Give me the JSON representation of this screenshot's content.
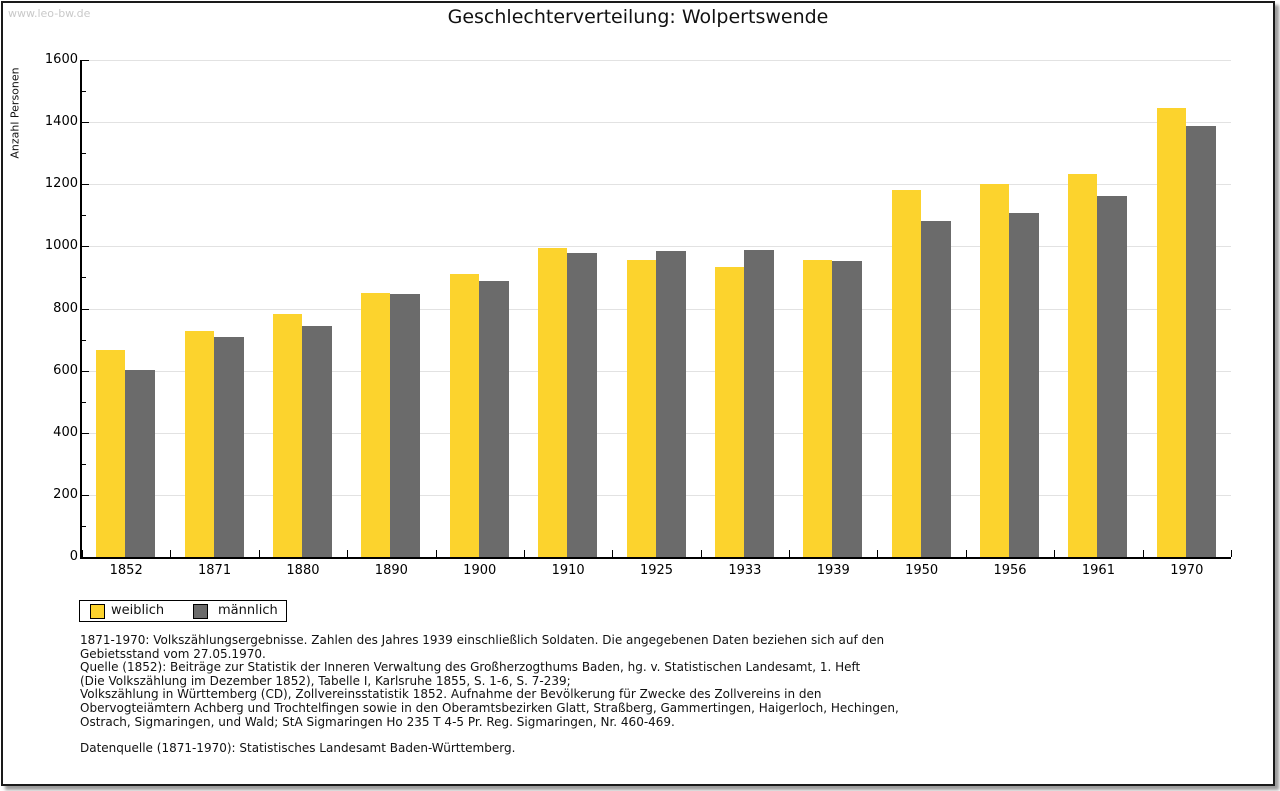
{
  "watermark": "www.leo-bw.de",
  "title": "Geschlechterverteilung: Wolpertswende",
  "chart_data": {
    "type": "bar",
    "title": "Geschlechterverteilung: Wolpertswende",
    "xlabel": "",
    "ylabel": "Anzahl Personen",
    "ylim": [
      0,
      1600
    ],
    "yticks": [
      0,
      200,
      400,
      600,
      800,
      1000,
      1200,
      1400,
      1600
    ],
    "ytick_minor_step": 100,
    "grid": true,
    "legend_position": "bottom-left",
    "categories": [
      "1852",
      "1871",
      "1880",
      "1890",
      "1900",
      "1910",
      "1925",
      "1933",
      "1939",
      "1950",
      "1956",
      "1961",
      "1970"
    ],
    "series": [
      {
        "name": "weiblich",
        "color": "#fcd32d",
        "values": [
          665,
          728,
          783,
          850,
          910,
          995,
          955,
          935,
          955,
          1180,
          1202,
          1234,
          1445
        ]
      },
      {
        "name": "männlich",
        "color": "#6b6b6b",
        "values": [
          603,
          707,
          744,
          847,
          890,
          978,
          984,
          987,
          952,
          1082,
          1108,
          1162,
          1388
        ]
      }
    ]
  },
  "colors": {
    "weiblich": "#fcd32d",
    "maennlich": "#6b6b6b",
    "gridline": "#e2e2e2",
    "watermark": "#c9c9c9"
  },
  "footnotes": {
    "lines": [
      "1871-1970: Volkszählungsergebnisse. Zahlen des Jahres 1939 einschließlich Soldaten. Die angegebenen Daten beziehen sich auf den",
      "Gebietsstand vom 27.05.1970.",
      "Quelle (1852): Beiträge zur Statistik der Inneren Verwaltung des Großherzogthums Baden, hg. v. Statistischen Landesamt, 1. Heft",
      "(Die Volkszählung im Dezember 1852), Tabelle I, Karlsruhe 1855, S. 1-6, S. 7-239;",
      "Volkszählung in Württemberg (CD), Zollvereinsstatistik 1852. Aufnahme der Bevölkerung für Zwecke des Zollvereins in den",
      "Obervogteiämtern Achberg und Trochtelfingen sowie in den Oberamtsbezirken Glatt, Straßberg, Gammertingen, Haigerloch, Hechingen,",
      "Ostrach, Sigmaringen, und Wald; StA Sigmaringen Ho 235 T 4-5 Pr. Reg. Sigmaringen, Nr. 460-469."
    ],
    "datasource": "Datenquelle (1871-1970): Statistisches Landesamt Baden-Württemberg."
  }
}
